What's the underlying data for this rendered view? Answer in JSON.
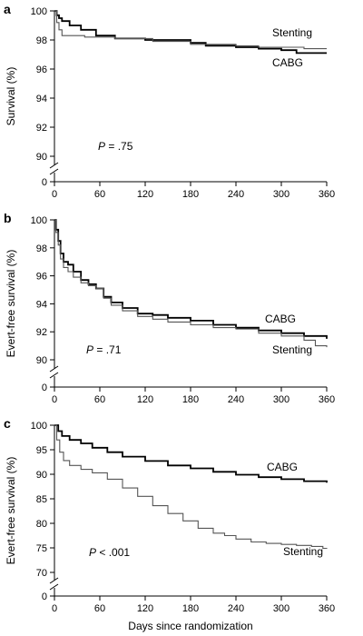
{
  "chart_data": [
    {
      "type": "line",
      "panel_label": "a",
      "ylabel": "Survival (%)",
      "xlabel": "",
      "annotation": {
        "italic": "P",
        "rest": " = .75"
      },
      "xlim": [
        0,
        360
      ],
      "ylim": [
        90,
        100
      ],
      "broken_y_axis": true,
      "x_ticks": [
        0,
        60,
        120,
        180,
        240,
        300,
        360
      ],
      "y_ticks": [
        100,
        98,
        96,
        94,
        92,
        90
      ],
      "y_axis_origin_label": "0",
      "series": [
        {
          "name": "CABG",
          "color": "#000000",
          "x": [
            0,
            3,
            6,
            10,
            20,
            35,
            55,
            80,
            120,
            180,
            200,
            240,
            270,
            300,
            320,
            360
          ],
          "y": [
            100,
            99.7,
            99.5,
            99.3,
            99.0,
            98.7,
            98.3,
            98.1,
            98.0,
            97.8,
            97.6,
            97.5,
            97.4,
            97.3,
            97.1,
            97.1
          ]
        },
        {
          "name": "Stenting",
          "color": "#555555",
          "x": [
            0,
            3,
            6,
            10,
            20,
            40,
            80,
            130,
            180,
            240,
            270,
            300,
            330,
            360
          ],
          "y": [
            100,
            99.2,
            98.7,
            98.3,
            98.3,
            98.2,
            98.1,
            97.9,
            97.7,
            97.6,
            97.5,
            97.5,
            97.4,
            97.4
          ]
        }
      ]
    },
    {
      "type": "line",
      "panel_label": "b",
      "ylabel": "Evert-free survival (%)",
      "xlabel": "",
      "annotation": {
        "italic": "P",
        "rest": " = .71"
      },
      "xlim": [
        0,
        360
      ],
      "ylim": [
        90,
        100
      ],
      "broken_y_axis": true,
      "x_ticks": [
        0,
        60,
        120,
        180,
        240,
        300,
        360
      ],
      "y_ticks": [
        100,
        98,
        96,
        94,
        92,
        90
      ],
      "y_axis_origin_label": "0",
      "series": [
        {
          "name": "CABG",
          "color": "#000000",
          "x": [
            0,
            2,
            5,
            8,
            12,
            18,
            25,
            35,
            45,
            55,
            65,
            75,
            90,
            110,
            130,
            150,
            180,
            210,
            240,
            270,
            300,
            330,
            360
          ],
          "y": [
            100,
            99.3,
            98.5,
            97.6,
            97.0,
            96.8,
            96.3,
            95.7,
            95.4,
            95.1,
            94.5,
            94.1,
            93.7,
            93.3,
            93.2,
            93.0,
            92.8,
            92.5,
            92.3,
            92.1,
            91.9,
            91.7,
            91.5
          ]
        },
        {
          "name": "Stenting",
          "color": "#555555",
          "x": [
            0,
            2,
            5,
            8,
            12,
            18,
            25,
            35,
            45,
            55,
            65,
            75,
            90,
            110,
            130,
            150,
            180,
            210,
            240,
            270,
            300,
            330,
            345,
            360
          ],
          "y": [
            100,
            99.1,
            98.2,
            97.2,
            96.6,
            96.3,
            95.9,
            95.5,
            95.3,
            95.1,
            94.4,
            93.9,
            93.5,
            93.1,
            92.9,
            92.7,
            92.5,
            92.3,
            92.2,
            91.9,
            91.7,
            91.4,
            91.0,
            90.9
          ]
        }
      ]
    },
    {
      "type": "line",
      "panel_label": "c",
      "ylabel": "Evert-free survival (%)",
      "xlabel": "Days since randomization",
      "annotation": {
        "italic": "P",
        "rest": " < .001"
      },
      "xlim": [
        0,
        360
      ],
      "ylim": [
        70,
        100
      ],
      "broken_y_axis": true,
      "x_ticks": [
        0,
        60,
        120,
        180,
        240,
        300,
        360
      ],
      "y_ticks": [
        100,
        95,
        90,
        85,
        80,
        75,
        70
      ],
      "y_axis_origin_label": "0",
      "series": [
        {
          "name": "CABG",
          "color": "#000000",
          "x": [
            0,
            5,
            10,
            20,
            35,
            50,
            70,
            90,
            120,
            150,
            180,
            210,
            240,
            270,
            300,
            330,
            360
          ],
          "y": [
            100,
            98.8,
            97.8,
            97.0,
            96.3,
            95.4,
            94.5,
            93.6,
            92.7,
            91.8,
            91.2,
            90.5,
            89.9,
            89.4,
            89.0,
            88.6,
            88.3
          ]
        },
        {
          "name": "Stenting",
          "color": "#555555",
          "x": [
            0,
            3,
            7,
            12,
            20,
            35,
            50,
            70,
            90,
            110,
            130,
            150,
            170,
            190,
            210,
            225,
            240,
            260,
            280,
            300,
            320,
            340,
            355,
            360
          ],
          "y": [
            100,
            97.0,
            94.5,
            92.8,
            91.8,
            91.0,
            90.3,
            89.0,
            87.2,
            85.5,
            83.6,
            82.0,
            80.5,
            79.0,
            78.0,
            77.5,
            76.8,
            76.2,
            75.9,
            75.7,
            75.5,
            75.3,
            74.9,
            75.0
          ]
        }
      ]
    }
  ]
}
